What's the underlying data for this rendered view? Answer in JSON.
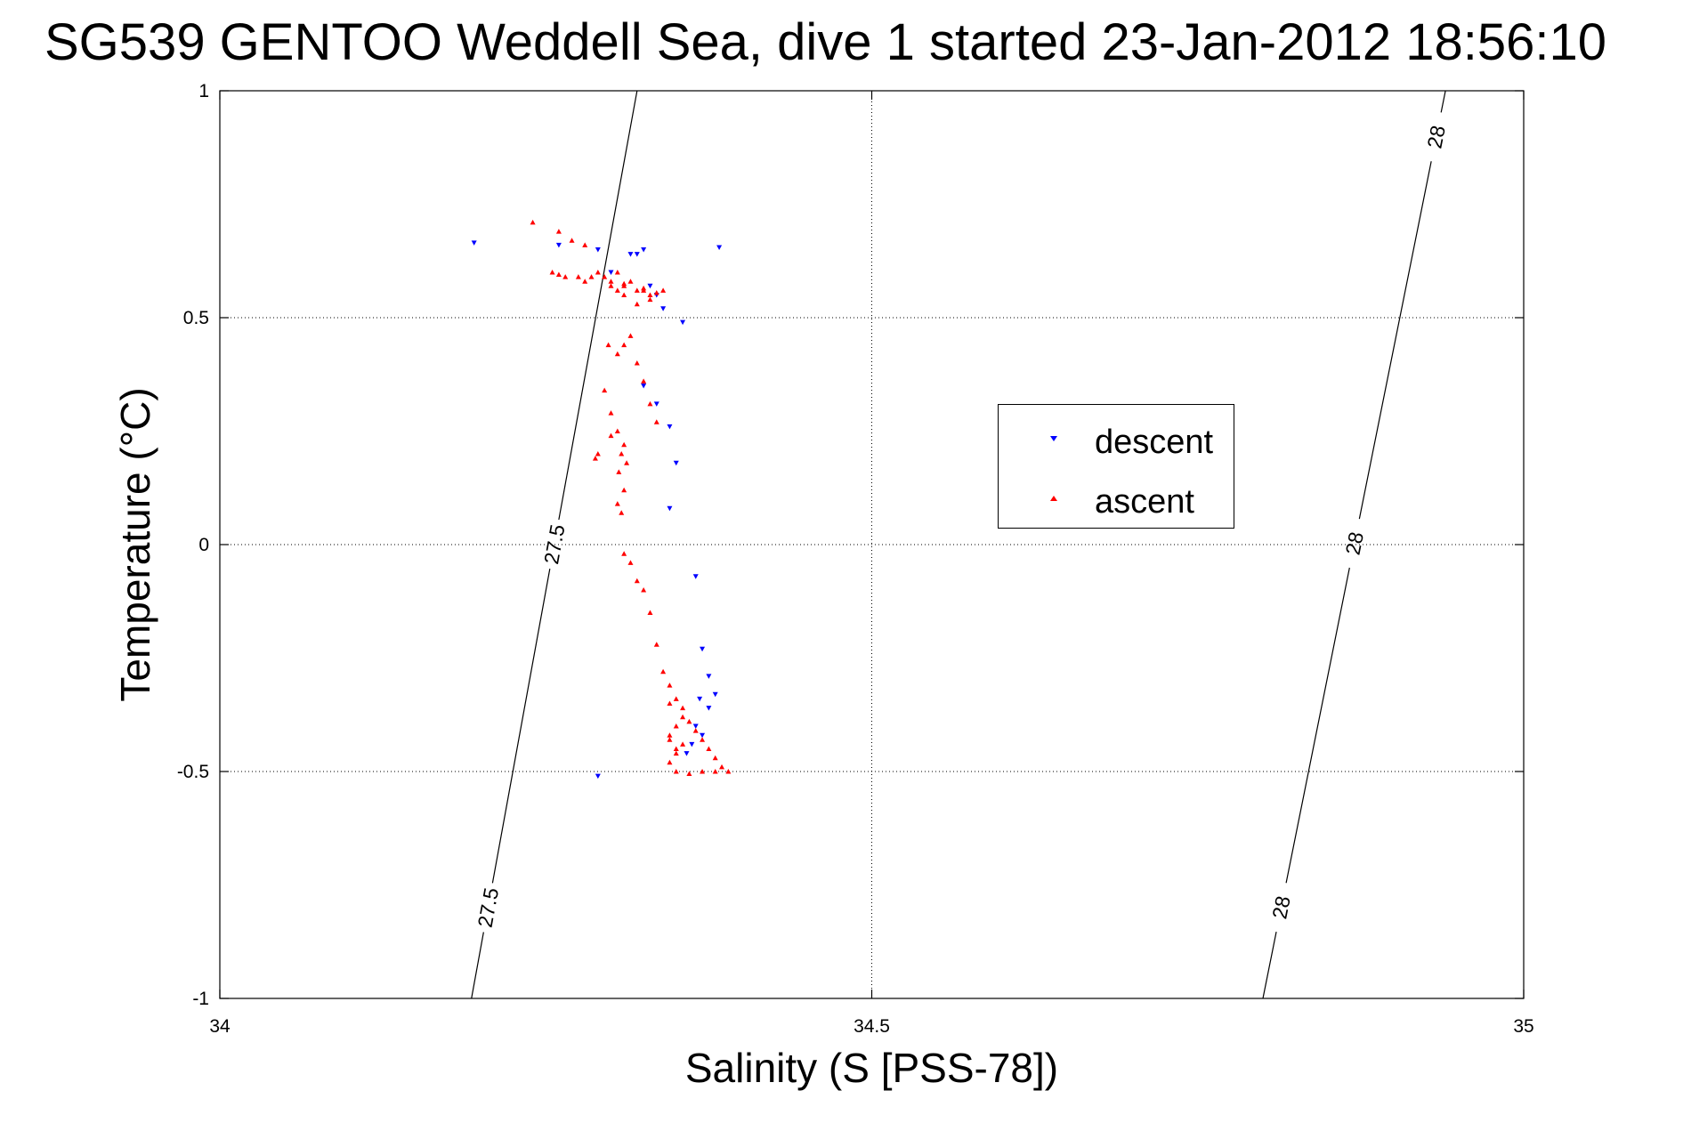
{
  "chart_data": {
    "type": "scatter",
    "title": "SG539 GENTOO Weddell Sea, dive 1 started 23-Jan-2012 18:56:10",
    "xlabel": "Salinity (S [PSS-78])",
    "ylabel": "Temperature (°C)",
    "xlim": [
      34,
      35
    ],
    "ylim": [
      -1,
      1
    ],
    "xticks": [
      34,
      34.5,
      35
    ],
    "xtick_labels": [
      "34",
      "34.5",
      "35"
    ],
    "yticks": [
      1,
      0.5,
      0,
      -0.5,
      -1
    ],
    "ytick_labels": [
      "1",
      "0.5",
      "0",
      "-0.5",
      "-1"
    ],
    "grid": true,
    "legend_position": "center-right",
    "contours": [
      {
        "label": "27.5",
        "points": [
          [
            34.193,
            -1.0
          ],
          [
            34.32,
            1.0
          ]
        ],
        "label_positions": [
          [
            34.206,
            -0.8
          ],
          [
            34.258,
            0.0
          ]
        ]
      },
      {
        "label": "28",
        "points": [
          [
            34.8,
            -1.0
          ],
          [
            34.94,
            1.0
          ]
        ],
        "label_positions": [
          [
            34.815,
            -0.8
          ],
          [
            34.875,
            0.0
          ],
          [
            34.93,
            0.9
          ]
        ]
      }
    ],
    "series": [
      {
        "name": "descent",
        "color": "#0000ff",
        "marker": "triangle-down",
        "x": [
          34.195,
          34.26,
          34.29,
          34.3,
          34.315,
          34.32,
          34.325,
          34.33,
          34.335,
          34.34,
          34.355,
          34.383,
          34.325,
          34.335,
          34.345,
          34.35,
          34.345,
          34.365,
          34.37,
          34.375,
          34.38,
          34.375,
          34.368,
          34.365,
          34.37,
          34.362,
          34.358,
          34.29
        ],
        "y": [
          0.665,
          0.66,
          0.65,
          0.6,
          0.64,
          0.64,
          0.65,
          0.57,
          0.55,
          0.52,
          0.49,
          0.655,
          0.35,
          0.31,
          0.26,
          0.18,
          0.08,
          -0.07,
          -0.23,
          -0.29,
          -0.33,
          -0.36,
          -0.34,
          -0.4,
          -0.42,
          -0.44,
          -0.46,
          -0.51
        ]
      },
      {
        "name": "ascent",
        "color": "#ff0000",
        "marker": "triangle-up",
        "x": [
          34.24,
          34.26,
          34.27,
          34.28,
          34.255,
          34.26,
          34.265,
          34.275,
          34.28,
          34.285,
          34.29,
          34.295,
          34.3,
          34.305,
          34.31,
          34.315,
          34.32,
          34.325,
          34.33,
          34.335,
          34.34,
          34.33,
          34.32,
          34.31,
          34.305,
          34.3,
          34.315,
          34.31,
          34.305,
          34.32,
          34.325,
          34.33,
          34.335,
          34.3,
          34.305,
          34.31,
          34.308,
          34.312,
          34.306,
          34.31,
          34.305,
          34.308,
          34.31,
          34.315,
          34.32,
          34.325,
          34.33,
          34.335,
          34.34,
          34.345,
          34.35,
          34.355,
          34.36,
          34.365,
          34.37,
          34.375,
          34.38,
          34.385,
          34.39,
          34.38,
          34.37,
          34.36,
          34.35,
          34.345,
          34.35,
          34.355,
          34.345,
          34.35,
          34.345,
          34.35,
          34.355,
          34.345,
          34.295,
          34.29,
          34.3,
          34.288,
          34.31,
          34.298,
          34.325
        ],
        "y": [
          0.71,
          0.69,
          0.67,
          0.66,
          0.6,
          0.595,
          0.59,
          0.59,
          0.58,
          0.59,
          0.6,
          0.59,
          0.58,
          0.6,
          0.575,
          0.58,
          0.56,
          0.565,
          0.55,
          0.555,
          0.56,
          0.54,
          0.53,
          0.55,
          0.56,
          0.57,
          0.46,
          0.44,
          0.42,
          0.4,
          0.36,
          0.31,
          0.27,
          0.29,
          0.25,
          0.22,
          0.2,
          0.18,
          0.16,
          0.12,
          0.09,
          0.07,
          -0.02,
          -0.04,
          -0.08,
          -0.1,
          -0.15,
          -0.22,
          -0.28,
          -0.31,
          -0.34,
          -0.36,
          -0.39,
          -0.41,
          -0.43,
          -0.45,
          -0.47,
          -0.49,
          -0.5,
          -0.5,
          -0.5,
          -0.505,
          -0.5,
          -0.48,
          -0.46,
          -0.44,
          -0.42,
          -0.4,
          -0.43,
          -0.45,
          -0.38,
          -0.35,
          0.34,
          0.2,
          0.24,
          0.19,
          0.57,
          0.44,
          0.56
        ]
      }
    ]
  }
}
